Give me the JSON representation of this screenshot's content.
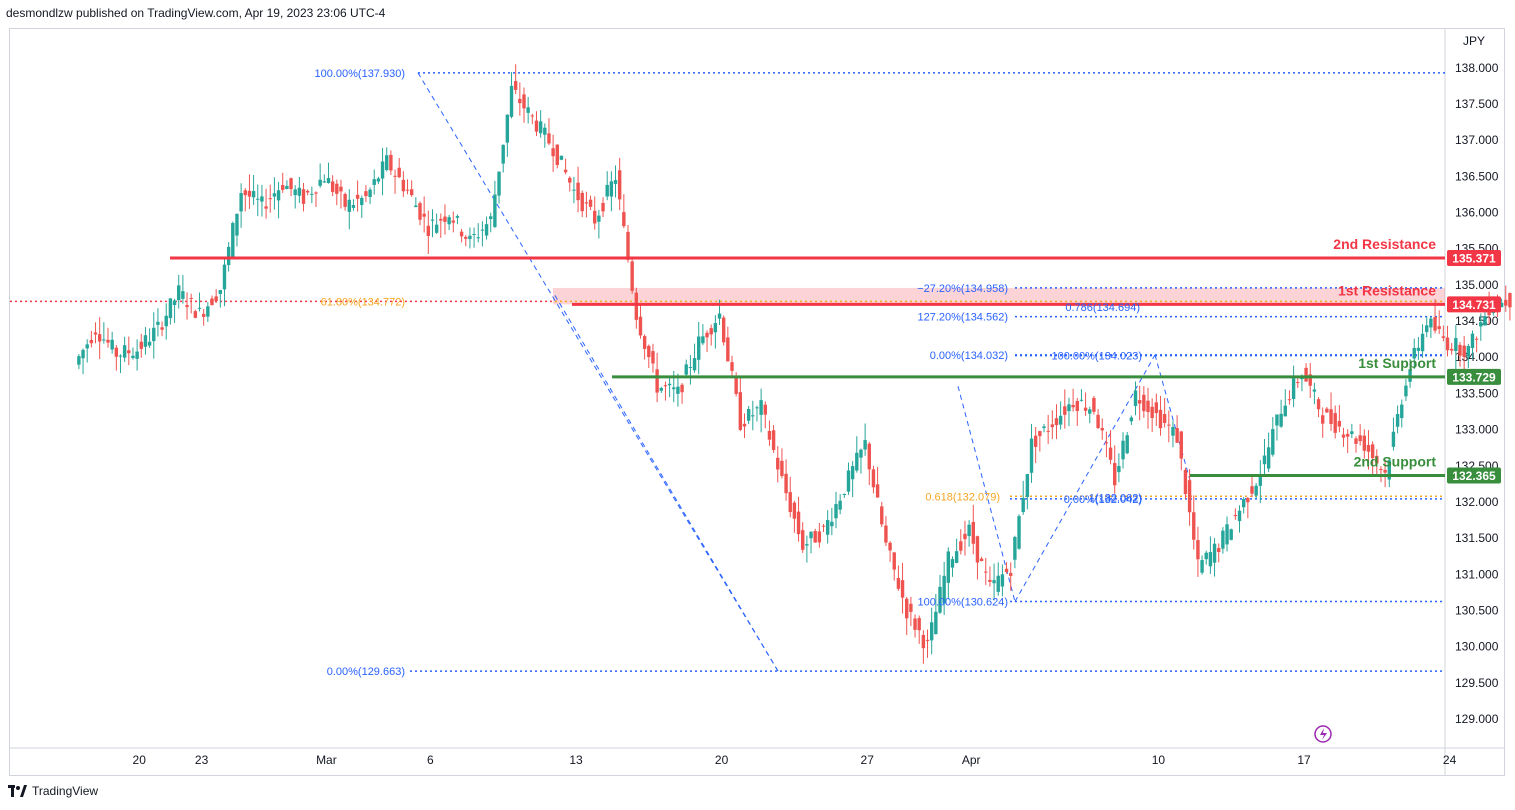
{
  "header": {
    "published": "desmondlzw published on TradingView.com, Apr 19, 2023 23:06 UTC-4"
  },
  "footer": {
    "brand": "TradingView"
  },
  "chart_data": {
    "type": "candlestick",
    "currency": "JPY",
    "ylim": [
      128.6,
      138.55
    ],
    "y_ticks": [
      "129.000",
      "129.500",
      "130.000",
      "130.500",
      "131.000",
      "131.500",
      "132.000",
      "132.500",
      "133.000",
      "133.500",
      "134.000",
      "134.500",
      "135.000",
      "135.500",
      "136.000",
      "136.500",
      "137.000",
      "137.500",
      "138.000"
    ],
    "x_ticks": [
      {
        "label": "20",
        "day": -1
      },
      {
        "label": "23",
        "day": 2
      },
      {
        "label": "Mar",
        "day": 8
      },
      {
        "label": "6",
        "day": 13
      },
      {
        "label": "13",
        "day": 20
      },
      {
        "label": "20",
        "day": 27
      },
      {
        "label": "27",
        "day": 34
      },
      {
        "label": "Apr",
        "day": 39
      },
      {
        "label": "10",
        "day": 48
      },
      {
        "label": "17",
        "day": 55
      },
      {
        "label": "24",
        "day": 62
      }
    ],
    "daily_closes": [
      [
        -4,
        133.9
      ],
      [
        -3,
        134.4
      ],
      [
        -2,
        134.05
      ],
      [
        -1,
        134.1
      ],
      [
        0,
        134.4
      ],
      [
        1,
        134.9
      ],
      [
        2,
        134.6
      ],
      [
        3,
        134.95
      ],
      [
        4,
        136.3
      ],
      [
        5,
        136.1
      ],
      [
        6,
        136.4
      ],
      [
        7,
        136.2
      ],
      [
        8,
        136.5
      ],
      [
        9,
        136.1
      ],
      [
        10,
        136.2
      ],
      [
        11,
        136.7
      ],
      [
        12,
        136.3
      ],
      [
        13,
        135.8
      ],
      [
        14,
        136.0
      ],
      [
        15,
        135.6
      ],
      [
        16,
        135.9
      ],
      [
        17,
        137.7
      ],
      [
        18,
        137.3
      ],
      [
        19,
        136.9
      ],
      [
        20,
        136.3
      ],
      [
        21,
        135.9
      ],
      [
        22,
        136.5
      ],
      [
        23,
        134.6
      ],
      [
        24,
        133.6
      ],
      [
        25,
        133.5
      ],
      [
        26,
        134.2
      ],
      [
        27,
        134.6
      ],
      [
        28,
        133.1
      ],
      [
        29,
        133.3
      ],
      [
        30,
        132.3
      ],
      [
        31,
        131.4
      ],
      [
        32,
        131.6
      ],
      [
        33,
        132.2
      ],
      [
        34,
        132.8
      ],
      [
        35,
        131.4
      ],
      [
        36,
        130.5
      ],
      [
        37,
        130.0
      ],
      [
        38,
        131.2
      ],
      [
        39,
        131.6
      ],
      [
        40,
        130.8
      ],
      [
        41,
        131.1
      ],
      [
        42,
        132.8
      ],
      [
        43,
        133.1
      ],
      [
        44,
        133.4
      ],
      [
        45,
        133.3
      ],
      [
        46,
        132.3
      ],
      [
        47,
        133.5
      ],
      [
        48,
        133.2
      ],
      [
        49,
        132.9
      ],
      [
        50,
        131.1
      ],
      [
        51,
        131.4
      ],
      [
        52,
        131.9
      ],
      [
        53,
        132.4
      ],
      [
        54,
        133.3
      ],
      [
        55,
        133.8
      ],
      [
        56,
        133.2
      ],
      [
        57,
        133.0
      ],
      [
        58,
        132.8
      ],
      [
        59,
        132.4
      ],
      [
        60,
        133.7
      ],
      [
        61,
        134.5
      ],
      [
        62,
        134.2
      ],
      [
        63,
        134.1
      ],
      [
        64,
        134.7
      ],
      [
        65,
        134.8
      ]
    ],
    "horizontal_levels": [
      {
        "name": "2nd Resistance",
        "value": 135.371,
        "label": "135.371",
        "color": "#f23645"
      },
      {
        "name": "1st Resistance",
        "value": 134.731,
        "label": "134.731",
        "color": "#f23645"
      },
      {
        "name": "1st Support",
        "value": 133.729,
        "label": "133.729",
        "color": "#388e3c"
      },
      {
        "name": "2nd Support",
        "value": 132.365,
        "label": "132.365",
        "color": "#388e3c"
      }
    ],
    "resistance_zone": [
      134.731,
      134.958
    ],
    "fib_labels": [
      {
        "text": "100.00%(137.930)",
        "value": 137.93,
        "color": "#2962ff"
      },
      {
        "text": "61.80%(134.772)",
        "value": 134.772,
        "color": "#f5a623"
      },
      {
        "text": "0.00%(129.663)",
        "value": 129.663,
        "color": "#2962ff"
      },
      {
        "text": "−27.20%(134.958)",
        "value": 134.958,
        "color": "#2962ff"
      },
      {
        "text": "0.786(134.694)",
        "value": 134.694,
        "color": "#2962ff"
      },
      {
        "text": "127.20%(134.562)",
        "value": 134.562,
        "color": "#2962ff"
      },
      {
        "text": "0.00%(134.032)",
        "value": 134.032,
        "color": "#2962ff"
      },
      {
        "text": "100.00%(134.023)",
        "value": 134.023,
        "color": "#2962ff"
      },
      {
        "text": "0.618(132.079)",
        "value": 132.079,
        "color": "#f5a623"
      },
      {
        "text": "1(132.062)",
        "value": 132.062,
        "color": "#2962ff"
      },
      {
        "text": "0.00%(132.042)",
        "value": 132.042,
        "color": "#2962ff"
      },
      {
        "text": "100.00%(130.624)",
        "value": 130.624,
        "color": "#2962ff"
      }
    ],
    "colors": {
      "up": "#26a69a",
      "down": "#ef5350",
      "resistance": "#f23645",
      "support": "#388e3c",
      "fib": "#2962ff",
      "golden": "#f5a623"
    }
  }
}
